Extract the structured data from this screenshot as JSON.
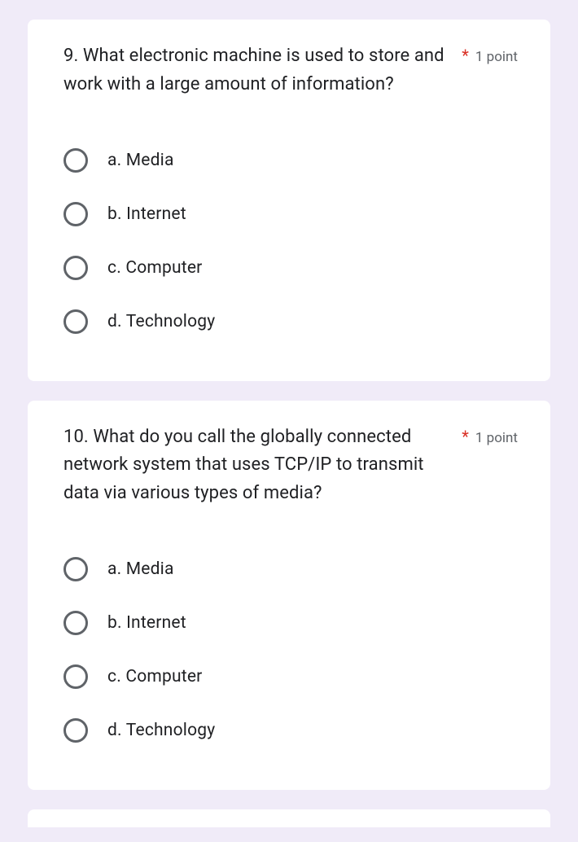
{
  "questions": [
    {
      "text": "9. What electronic machine is used to store and work with a large amount of information?",
      "required": "*",
      "points": "1 point",
      "options": [
        "a. Media",
        "b. Internet",
        "c. Computer",
        "d. Technology"
      ]
    },
    {
      "text": "10. What do you call the globally connected network system that uses TCP/IP to transmit data via various types of media?",
      "required": "*",
      "points": "1 point",
      "options": [
        "a. Media",
        "b. Internet",
        "c. Computer",
        "d. Technology"
      ]
    }
  ],
  "styling": {
    "background_color": "#f0ebf8",
    "card_background": "#ffffff",
    "text_color": "#202124",
    "muted_color": "#5f6368",
    "required_color": "#d93025",
    "radio_border_color": "#5f6368",
    "question_fontsize": 22,
    "option_fontsize": 21,
    "points_fontsize": 17,
    "card_radius": 8
  }
}
